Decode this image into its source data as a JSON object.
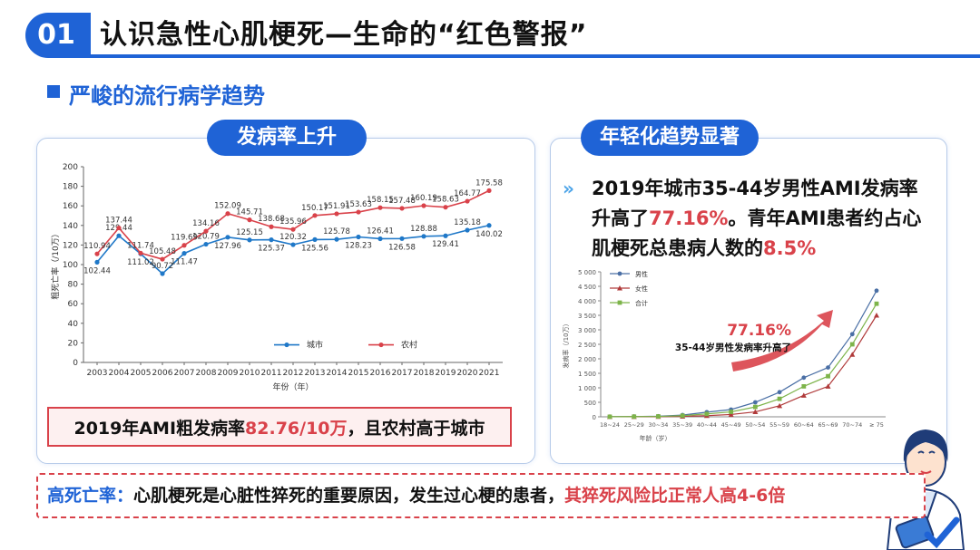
{
  "header": {
    "number": "01",
    "title": "认识急性心肌梗死—生命的“红色警报”"
  },
  "section": {
    "subtitle": "严峻的流行病学趋势"
  },
  "left_panel": {
    "tag": "发病率上升",
    "caption_prefix": "2019年AMI粗发病率",
    "caption_value": "82.76/10万",
    "caption_suffix": "，且农村高于城市"
  },
  "right_panel": {
    "tag": "年轻化趋势显著",
    "text_1": "2019年城市35-44岁男性AMI发病率升高了",
    "text_pct": "77.16%",
    "text_2": "。青年AMI患者约占心肌梗死总患病人数的",
    "text_pct2": "8.5%",
    "callout_pct": "77.16%",
    "callout_label": "35-44岁男性发病率升高了"
  },
  "bottom": {
    "label": "高死亡率：",
    "text": "心肌梗死是心脏性猝死的重要原因，发生过心梗的患者，",
    "highlight": "其猝死风险比正常人高4-6倍"
  },
  "chart_data": [
    {
      "type": "line",
      "ylabel": "粗死亡率（/10万）",
      "xlabel": "年份（年）",
      "ylim": [
        0,
        200
      ],
      "yticks": [
        0,
        20,
        40,
        60,
        80,
        100,
        120,
        140,
        160,
        180,
        200
      ],
      "categories": [
        "2003",
        "2004",
        "2005",
        "2006",
        "2007",
        "2008",
        "2009",
        "2010",
        "2011",
        "2012",
        "2013",
        "2014",
        "2015",
        "2016",
        "2017",
        "2018",
        "2019",
        "2020",
        "2021"
      ],
      "series": [
        {
          "name": "城市",
          "color": "#1f78c8",
          "values": [
            102.44,
            129.44,
            111.02,
            90.72,
            111.47,
            120.79,
            127.96,
            125.15,
            125.37,
            120.32,
            125.56,
            125.78,
            128.23,
            126.41,
            126.58,
            128.88,
            129.41,
            135.18,
            140.02
          ]
        },
        {
          "name": "农村",
          "color": "#d9424a",
          "values": [
            110.94,
            137.44,
            111.74,
            105.48,
            119.69,
            134.16,
            152.09,
            145.71,
            138.68,
            135.96,
            150.17,
            151.91,
            153.63,
            158.15,
            157.48,
            160.19,
            158.63,
            164.77,
            175.58
          ]
        }
      ],
      "legend": "bottom-center"
    },
    {
      "type": "line",
      "ylabel": "发病率（/10万）",
      "xlabel": "年龄（岁）",
      "ylim": [
        0,
        5000
      ],
      "yticks": [
        "0",
        "500",
        "1 000",
        "1 500",
        "2 000",
        "2 500",
        "3 000",
        "3 500",
        "4 000",
        "4 500",
        "5 000"
      ],
      "categories": [
        "18~24",
        "25~29",
        "30~34",
        "35~39",
        "40~44",
        "45~49",
        "50~54",
        "55~59",
        "60~64",
        "65~69",
        "70~74",
        "≥ 75"
      ],
      "series": [
        {
          "name": "男性",
          "color": "#4a6fa5",
          "marker": "circle",
          "values": [
            5,
            10,
            20,
            60,
            160,
            250,
            500,
            850,
            1350,
            1700,
            2850,
            4350
          ]
        },
        {
          "name": "女性",
          "color": "#b03a3a",
          "marker": "triangle",
          "values": [
            2,
            4,
            8,
            15,
            40,
            80,
            170,
            380,
            740,
            1050,
            2150,
            3500
          ]
        },
        {
          "name": "合计",
          "color": "#7db44a",
          "marker": "square",
          "values": [
            3,
            7,
            14,
            40,
            100,
            170,
            340,
            620,
            1050,
            1400,
            2500,
            3900
          ]
        }
      ],
      "legend": "top-left"
    }
  ]
}
